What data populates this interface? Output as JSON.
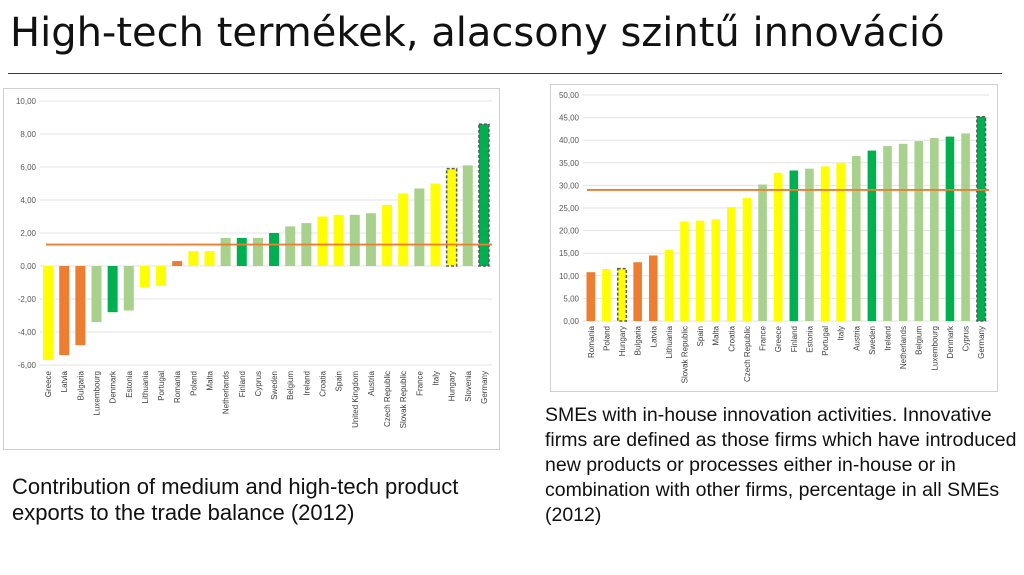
{
  "slide": {
    "title": "High-tech termékek, alacsony szintű innováció",
    "caption_left": "Contribution of medium and high-tech product exports to the trade balance (2012)",
    "caption_right": "SMEs with in-house innovation activities. Innovative firms are defined as those firms which have introduced new products or processes either in-house or in combination with other firms, percentage in all SMEs (2012)"
  },
  "colors": {
    "yellow": "#ffff00",
    "orange": "#ed7d31",
    "lightgreen": "#a9d18e",
    "darkgreen": "#00b050",
    "reference_line": "#ed7d31",
    "highlight_border": "#595959"
  },
  "chart_data": [
    {
      "type": "bar",
      "ylim": [
        -6,
        10
      ],
      "yticks": [
        "-6,00",
        "-4,00",
        "-2,00",
        "0,00",
        "2,00",
        "4,00",
        "6,00",
        "8,00",
        "10,00"
      ],
      "reference_line": 1.3,
      "categories": [
        "Greece",
        "Latvia",
        "Bulgaria",
        "Luxembourg",
        "Denmark",
        "Estonia",
        "Lithuania",
        "Portugal",
        "Romania",
        "Poland",
        "Malta",
        "Netherlands",
        "Finland",
        "Cyprus",
        "Sweden",
        "Belgium",
        "Ireland",
        "Croatia",
        "Spain",
        "United Kingdom",
        "Austria",
        "Czech Republic",
        "Slovak Republic",
        "France",
        "Italy",
        "Hungary",
        "Slovenia",
        "Germany"
      ],
      "values": [
        -5.7,
        -5.4,
        -4.8,
        -3.4,
        -2.8,
        -2.7,
        -1.3,
        -1.2,
        0.3,
        0.9,
        0.9,
        1.7,
        1.7,
        1.7,
        2.0,
        2.4,
        2.6,
        3.0,
        3.1,
        3.1,
        3.2,
        3.7,
        4.4,
        4.7,
        5.0,
        5.9,
        6.1,
        8.6
      ],
      "colors": [
        "yellow",
        "orange",
        "orange",
        "lightgreen",
        "darkgreen",
        "lightgreen",
        "yellow",
        "yellow",
        "orange",
        "yellow",
        "yellow",
        "lightgreen",
        "darkgreen",
        "lightgreen",
        "darkgreen",
        "lightgreen",
        "lightgreen",
        "yellow",
        "yellow",
        "lightgreen",
        "lightgreen",
        "yellow",
        "yellow",
        "lightgreen",
        "yellow",
        "yellow",
        "lightgreen",
        "darkgreen"
      ],
      "highlighted": [
        "Hungary",
        "Germany"
      ]
    },
    {
      "type": "bar",
      "ylim": [
        0,
        50
      ],
      "yticks": [
        "0,00",
        "5,00",
        "10,00",
        "15,00",
        "20,00",
        "25,00",
        "30,00",
        "35,00",
        "40,00",
        "45,00",
        "50,00"
      ],
      "reference_line": 29,
      "categories": [
        "Romania",
        "Poland",
        "Hungary",
        "Bulgaria",
        "Latvia",
        "Lithuania",
        "Slovak Republic",
        "Spain",
        "Malta",
        "Croatia",
        "Czech Republic",
        "France",
        "Greece",
        "Finland",
        "Estonia",
        "Portugal",
        "Italy",
        "Austria",
        "Sweden",
        "Ireland",
        "Netherlands",
        "Belgium",
        "Luxembourg",
        "Denmark",
        "Cyprus",
        "Germany"
      ],
      "values": [
        10.8,
        11.5,
        11.6,
        13.0,
        14.5,
        15.7,
        22.0,
        22.2,
        22.5,
        25.2,
        27.2,
        30.2,
        32.8,
        33.3,
        33.7,
        34.2,
        35.0,
        36.5,
        37.7,
        38.7,
        39.2,
        39.8,
        40.5,
        40.8,
        41.5,
        45.2
      ],
      "colors": [
        "orange",
        "yellow",
        "yellow",
        "orange",
        "orange",
        "yellow",
        "yellow",
        "yellow",
        "yellow",
        "yellow",
        "yellow",
        "lightgreen",
        "yellow",
        "darkgreen",
        "lightgreen",
        "yellow",
        "yellow",
        "lightgreen",
        "darkgreen",
        "lightgreen",
        "lightgreen",
        "lightgreen",
        "lightgreen",
        "darkgreen",
        "lightgreen",
        "darkgreen"
      ],
      "highlighted": [
        "Hungary",
        "Germany"
      ]
    }
  ]
}
